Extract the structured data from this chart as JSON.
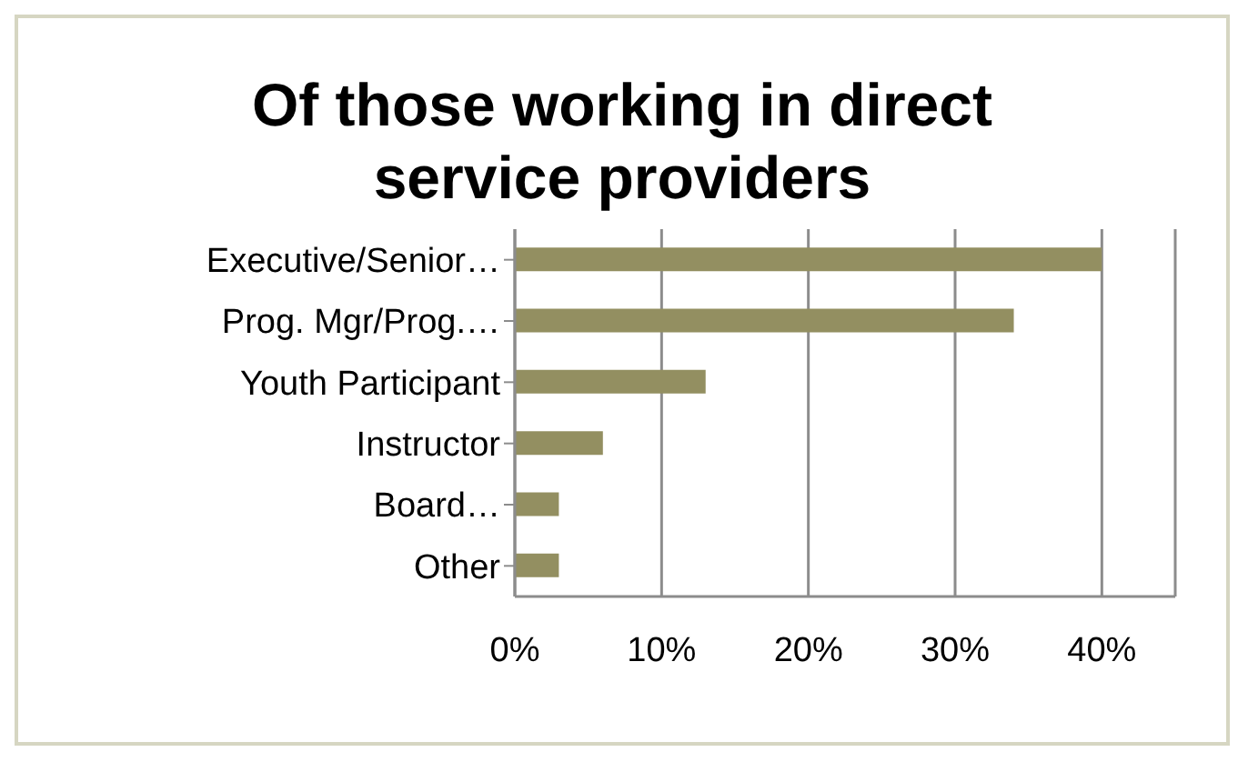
{
  "chart_data": {
    "type": "bar",
    "orientation": "horizontal",
    "title": "Of those working in direct service providers",
    "categories": [
      "Executive/Senior…",
      "Prog. Mgr/Prog.…",
      "Youth Participant",
      "Instructor",
      "Board…",
      "Other"
    ],
    "values": [
      40,
      34,
      13,
      6,
      3,
      3
    ],
    "color": "#938f61",
    "xlim": [
      0,
      45
    ],
    "xticks": [
      {
        "value": 0,
        "label": "0%"
      },
      {
        "value": 10,
        "label": "10%"
      },
      {
        "value": 20,
        "label": "20%"
      },
      {
        "value": 30,
        "label": "30%"
      },
      {
        "value": 40,
        "label": "40%"
      }
    ],
    "grid": "x",
    "legend": false
  }
}
